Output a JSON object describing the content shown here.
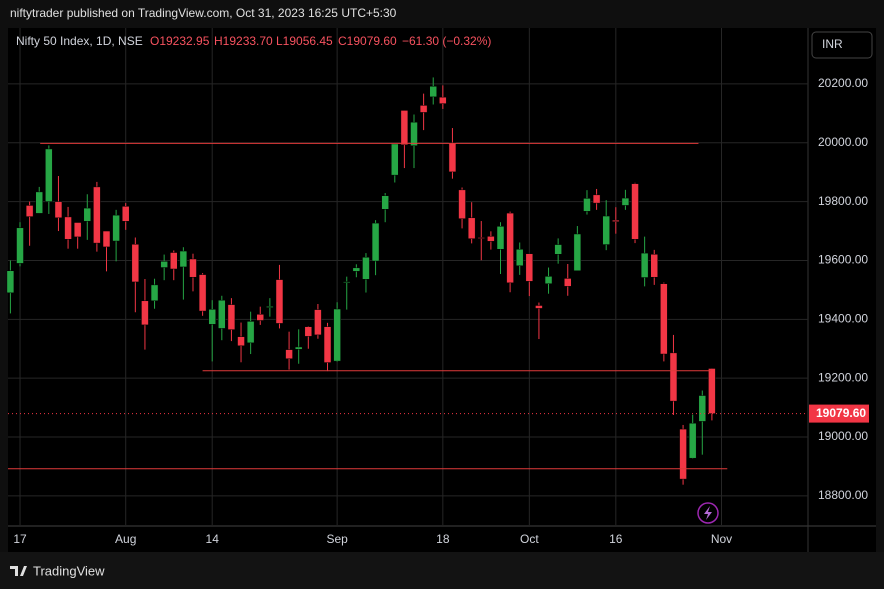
{
  "header": "niftytrader published on TradingView.com, Oct 31, 2023 16:25 UTC+5:30",
  "footer": "TradingView",
  "currency": "INR",
  "chart_data": {
    "type": "candlestick",
    "legend": {
      "symbol": "Nifty 50 Index, 1D, NSE",
      "open": "O19232.95",
      "high": "H19233.70",
      "low": "L19056.45",
      "close": "C19079.60",
      "change": "−61.30 (−0.32%)"
    },
    "up_color": "#26a645",
    "down_color": "#f23645",
    "grid": true,
    "open": [
      19490,
      19590,
      19787,
      19760,
      19800,
      19800,
      19748,
      19729,
      19733,
      19850,
      19700,
      19666,
      19784,
      19655,
      19463,
      19463,
      19576,
      19627,
      19578,
      19605,
      19552,
      19383,
      19369,
      19450,
      19341,
      19320,
      19417,
      19440,
      19535,
      19297,
      19298,
      19375,
      19433,
      19375,
      19258,
      19525,
      19563,
      19536,
      19598,
      19774,
      19890,
      20110,
      19990,
      20127,
      20156,
      20155,
      20000,
      19840,
      19745,
      19678,
      19682,
      19638,
      19761,
      19582,
      19623,
      19447,
      19521,
      19621,
      19539,
      19565,
      19767,
      19823,
      19654,
      19737,
      19787,
      19861,
      19542,
      19621,
      19521,
      19286,
      19027,
      18928,
      19053,
      19232.95
    ],
    "high": [
      19600,
      19730,
      19800,
      19850,
      19991,
      19887,
      19782,
      19729,
      19825,
      19867,
      19700,
      19772,
      19795,
      19678,
      19537,
      19538,
      19620,
      19634,
      19645,
      19623,
      19557,
      19465,
      19480,
      19472,
      19389,
      19426,
      19443,
      19472,
      19585,
      19358,
      19366,
      19377,
      19452,
      19388,
      19458,
      19545,
      19587,
      19625,
      19737,
      19829,
      19996,
      20110,
      20096,
      20167,
      20222,
      20195,
      20050,
      19848,
      19798,
      19734,
      19699,
      19730,
      19766,
      19661,
      19624,
      19457,
      19576,
      19675,
      19588,
      19717,
      19839,
      19843,
      19805,
      19781,
      19840,
      19864,
      19681,
      19636,
      19525,
      19347,
      19041,
      19076,
      19158,
      19233.7
    ],
    "low": [
      19420,
      19580,
      19650,
      19760,
      19758,
      19700,
      19640,
      19640,
      19670,
      19630,
      19563,
      19597,
      19704,
      19424,
      19297,
      19436,
      19533,
      19533,
      19467,
      19495,
      19412,
      19257,
      19329,
      19326,
      19254,
      19282,
      19381,
      19409,
      19369,
      19229,
      19249,
      19300,
      19334,
      19224,
      19255,
      19433,
      19543,
      19491,
      19550,
      19730,
      19865,
      19914,
      19914,
      20043,
      20130,
      20115,
      19878,
      19709,
      19658,
      19601,
      19637,
      19554,
      19492,
      19551,
      19479,
      19333,
      19487,
      19589,
      19480,
      19565,
      19756,
      19772,
      19635,
      19691,
      19772,
      19659,
      19512,
      19517,
      19257,
      19075,
      18838,
      18926,
      18940,
      19056.45
    ],
    "close": [
      19565,
      19711,
      19749,
      19833,
      19979,
      19745,
      19672,
      19680,
      19778,
      19659,
      19646,
      19754,
      19733,
      19527,
      19381,
      19517,
      19597,
      19571,
      19632,
      19543,
      19428,
      19434,
      19465,
      19365,
      19310,
      19393,
      19396,
      19444,
      19386,
      19266,
      19306,
      19342,
      19347,
      19253,
      19435,
      19528,
      19575,
      19611,
      19727,
      19820,
      19996,
      19993,
      20070,
      20103,
      20192,
      20133,
      19901,
      19742,
      19674,
      19675,
      19665,
      19716,
      19524,
      19638,
      19529,
      19437,
      19546,
      19654,
      19512,
      19690,
      19811,
      19795,
      19751,
      19732,
      19812,
      19672,
      19625,
      19543,
      19282,
      19122,
      18857,
      19047,
      19141,
      19079.6
    ],
    "xlim": [
      -0.25,
      83
    ],
    "xticks": [
      {
        "value": 1,
        "label": "17"
      },
      {
        "value": 12,
        "label": "Aug"
      },
      {
        "value": 21,
        "label": "14"
      },
      {
        "value": 34,
        "label": "Sep"
      },
      {
        "value": 45,
        "label": "18"
      },
      {
        "value": 54,
        "label": "Oct"
      },
      {
        "value": 63,
        "label": "16"
      },
      {
        "value": 74,
        "label": "Nov"
      }
    ],
    "ylim": [
      18701,
      20390
    ],
    "yticks": [
      {
        "value": 18800,
        "label": "18800.00"
      },
      {
        "value": 19000,
        "label": "19000.00"
      },
      {
        "value": 19200,
        "label": "19200.00"
      },
      {
        "value": 19400,
        "label": "19400.00"
      },
      {
        "value": 19600,
        "label": "19600.00"
      },
      {
        "value": 19800,
        "label": "19800.00"
      },
      {
        "value": 20000,
        "label": "20000.00"
      },
      {
        "value": 20200,
        "label": "20200.00"
      }
    ],
    "last_price": {
      "value": 19079.6,
      "label": "19079.60"
    },
    "levels": [
      {
        "value": 19998,
        "x": [
          3.1,
          71.6
        ]
      },
      {
        "value": 19225,
        "x": [
          20,
          72.9
        ]
      },
      {
        "value": 18892,
        "x": [
          -0.25,
          74.6
        ]
      }
    ],
    "level_color": "#e03a3a"
  }
}
